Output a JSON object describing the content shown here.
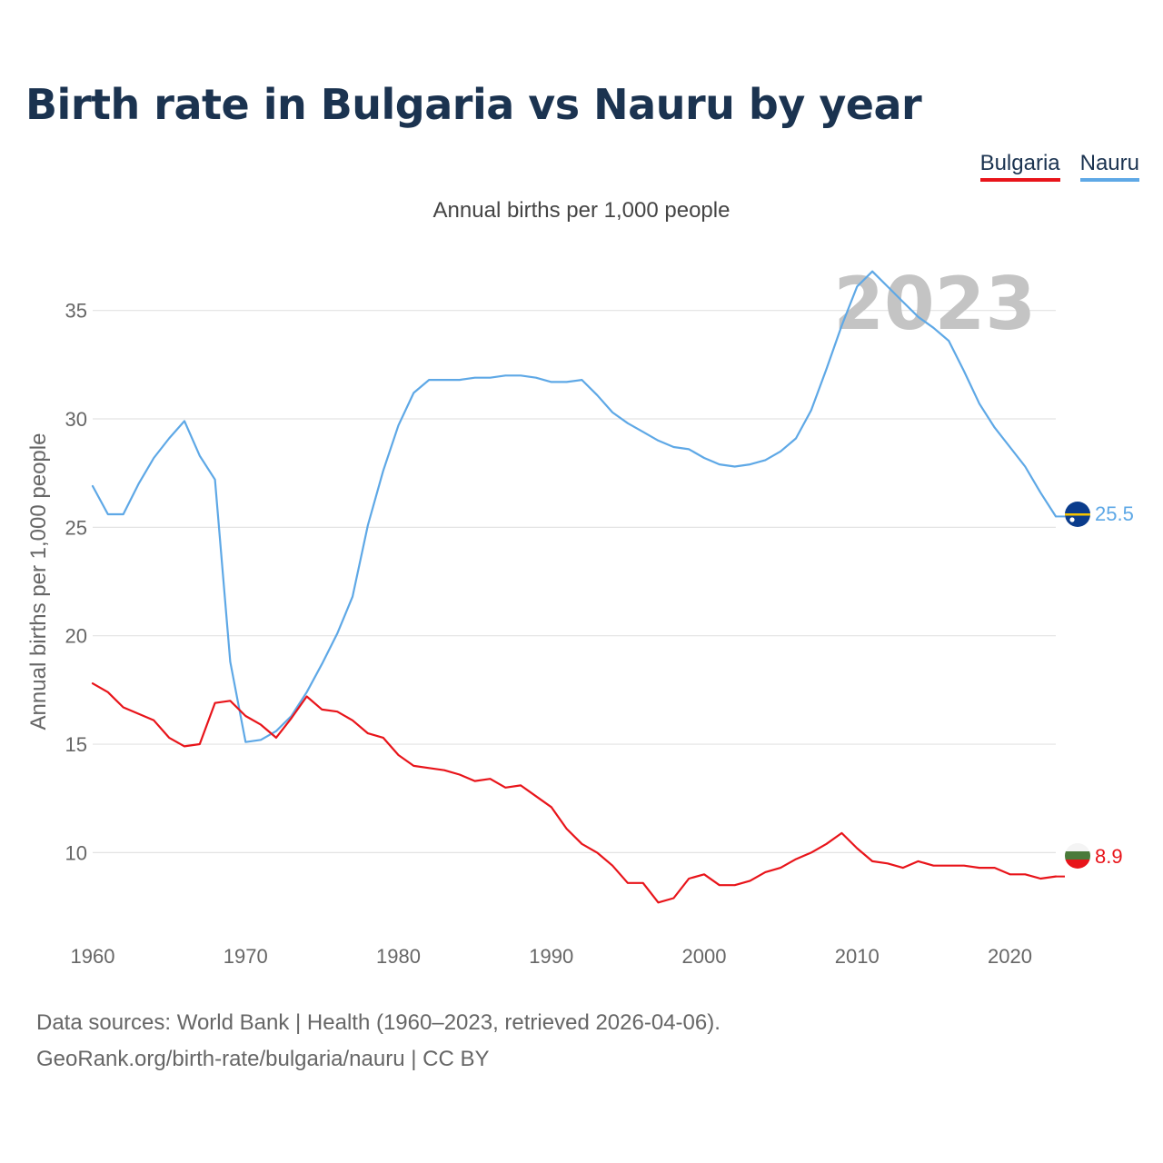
{
  "title": "Birth rate in Bulgaria vs Nauru by year",
  "subtitle": "Annual births per 1,000 people",
  "legend": {
    "bulgaria": "Bulgaria",
    "nauru": "Nauru"
  },
  "year_label": "2023",
  "source": {
    "line1": "Data sources: World Bank | Health (1960–2023, retrieved 2026-04-06).",
    "line2": "GeoRank.org/birth-rate/bulgaria/nauru | CC BY"
  },
  "chart_data": {
    "type": "line",
    "title": "Birth rate in Bulgaria vs Nauru by year",
    "ylabel": "Annual births per 1,000 people",
    "xlabel": "",
    "xlim": [
      1960,
      2023
    ],
    "ylim": [
      7,
      37.5
    ],
    "yticks": [
      10,
      15,
      20,
      25,
      30,
      35
    ],
    "xticks": [
      1960,
      1970,
      1980,
      1990,
      2000,
      2010,
      2020
    ],
    "x": [
      1960,
      1961,
      1962,
      1963,
      1964,
      1965,
      1966,
      1967,
      1968,
      1969,
      1970,
      1971,
      1972,
      1973,
      1974,
      1975,
      1976,
      1977,
      1978,
      1979,
      1980,
      1981,
      1982,
      1983,
      1984,
      1985,
      1986,
      1987,
      1988,
      1989,
      1990,
      1991,
      1992,
      1993,
      1994,
      1995,
      1996,
      1997,
      1998,
      1999,
      2000,
      2001,
      2002,
      2003,
      2004,
      2005,
      2006,
      2007,
      2008,
      2009,
      2010,
      2011,
      2012,
      2013,
      2014,
      2015,
      2016,
      2017,
      2018,
      2019,
      2020,
      2021,
      2022,
      2023
    ],
    "series": [
      {
        "name": "Bulgaria",
        "color": "#e8141a",
        "end_label": "8.9",
        "values": [
          17.8,
          17.4,
          16.7,
          16.4,
          16.1,
          15.3,
          14.9,
          15.0,
          16.9,
          17.0,
          16.3,
          15.9,
          15.3,
          16.2,
          17.2,
          16.6,
          16.5,
          16.1,
          15.5,
          15.3,
          14.5,
          14.0,
          13.9,
          13.8,
          13.6,
          13.3,
          13.4,
          13.0,
          13.1,
          12.6,
          12.1,
          11.1,
          10.4,
          10.0,
          9.4,
          8.6,
          8.6,
          7.7,
          7.9,
          8.8,
          9.0,
          8.5,
          8.5,
          8.7,
          9.1,
          9.3,
          9.7,
          10.0,
          10.4,
          10.9,
          10.2,
          9.6,
          9.5,
          9.3,
          9.6,
          9.4,
          9.4,
          9.4,
          9.3,
          9.3,
          9.0,
          9.0,
          8.8,
          8.9
        ]
      },
      {
        "name": "Nauru",
        "color": "#5ea8e6",
        "end_label": "25.5",
        "values": [
          26.9,
          25.6,
          25.6,
          27.0,
          28.2,
          29.1,
          29.9,
          28.3,
          27.2,
          18.8,
          15.1,
          15.2,
          15.6,
          16.3,
          17.4,
          18.7,
          20.1,
          21.8,
          25.1,
          27.6,
          29.7,
          31.2,
          31.8,
          31.8,
          31.8,
          31.9,
          31.9,
          32.0,
          32.0,
          31.9,
          31.7,
          31.7,
          31.8,
          31.1,
          30.3,
          29.8,
          29.4,
          29.0,
          28.7,
          28.6,
          28.2,
          27.9,
          27.8,
          27.9,
          28.1,
          28.5,
          29.1,
          30.4,
          32.3,
          34.3,
          36.1,
          36.8,
          36.1,
          35.4,
          34.7,
          34.2,
          33.6,
          32.2,
          30.7,
          29.6,
          28.7,
          27.8,
          26.6,
          25.5
        ]
      }
    ]
  },
  "colors": {
    "title": "#1b3350",
    "grid": "#e3e3e3",
    "axis_text": "#666666",
    "year_label": "#c4c4c4"
  },
  "icons": {
    "bulgaria": "bulgaria-flag-icon",
    "nauru": "nauru-flag-icon"
  }
}
